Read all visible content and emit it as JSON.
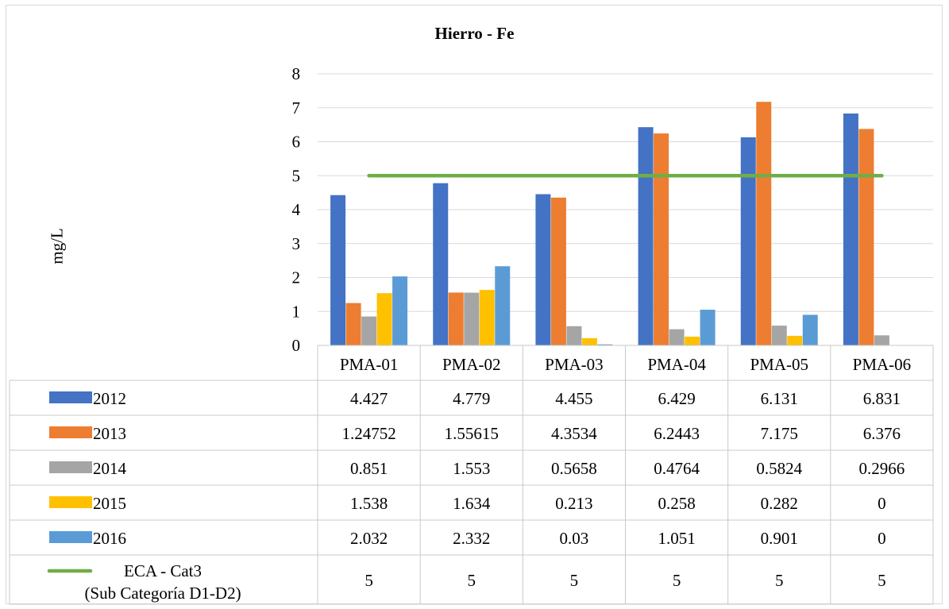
{
  "chart_data": {
    "type": "bar",
    "title": "Hierro - Fe",
    "ylabel": "mg/L",
    "xlabel": "",
    "ylim": [
      0,
      8
    ],
    "yticks": [
      "0",
      "1",
      "2",
      "3",
      "4",
      "5",
      "6",
      "7",
      "8"
    ],
    "grid": true,
    "legend": "data-table",
    "categories": [
      "PMA-01",
      "PMA-02",
      "PMA-03",
      "PMA-04",
      "PMA-05",
      "PMA-06"
    ],
    "series": [
      {
        "name": "2012",
        "type": "bar",
        "color": "#4472C4",
        "values": [
          4.427,
          4.779,
          4.455,
          6.429,
          6.131,
          6.831
        ],
        "labels": [
          "4.427",
          "4.779",
          "4.455",
          "6.429",
          "6.131",
          "6.831"
        ]
      },
      {
        "name": "2013",
        "type": "bar",
        "color": "#ED7D31",
        "values": [
          1.24752,
          1.55615,
          4.3534,
          6.2443,
          7.175,
          6.376
        ],
        "labels": [
          "1.24752",
          "1.55615",
          "4.3534",
          "6.2443",
          "7.175",
          "6.376"
        ]
      },
      {
        "name": "2014",
        "type": "bar",
        "color": "#A5A5A5",
        "values": [
          0.851,
          1.553,
          0.5658,
          0.4764,
          0.5824,
          0.2966
        ],
        "labels": [
          "0.851",
          "1.553",
          "0.5658",
          "0.4764",
          "0.5824",
          "0.2966"
        ]
      },
      {
        "name": "2015",
        "type": "bar",
        "color": "#FFC000",
        "values": [
          1.538,
          1.634,
          0.213,
          0.258,
          0.282,
          0
        ],
        "labels": [
          "1.538",
          "1.634",
          "0.213",
          "0.258",
          "0.282",
          "0"
        ]
      },
      {
        "name": "2016",
        "type": "bar",
        "color": "#5B9BD5",
        "values": [
          2.032,
          2.332,
          0.03,
          1.051,
          0.901,
          0
        ],
        "labels": [
          "2.032",
          "2.332",
          "0.03",
          "1.051",
          "0.901",
          "0"
        ]
      },
      {
        "name": "ECA - Cat3\n(Sub Categoría D1-D2)",
        "type": "line",
        "color": "#70AD47",
        "values": [
          5,
          5,
          5,
          5,
          5,
          5
        ],
        "labels": [
          "5",
          "5",
          "5",
          "5",
          "5",
          "5"
        ]
      }
    ]
  }
}
